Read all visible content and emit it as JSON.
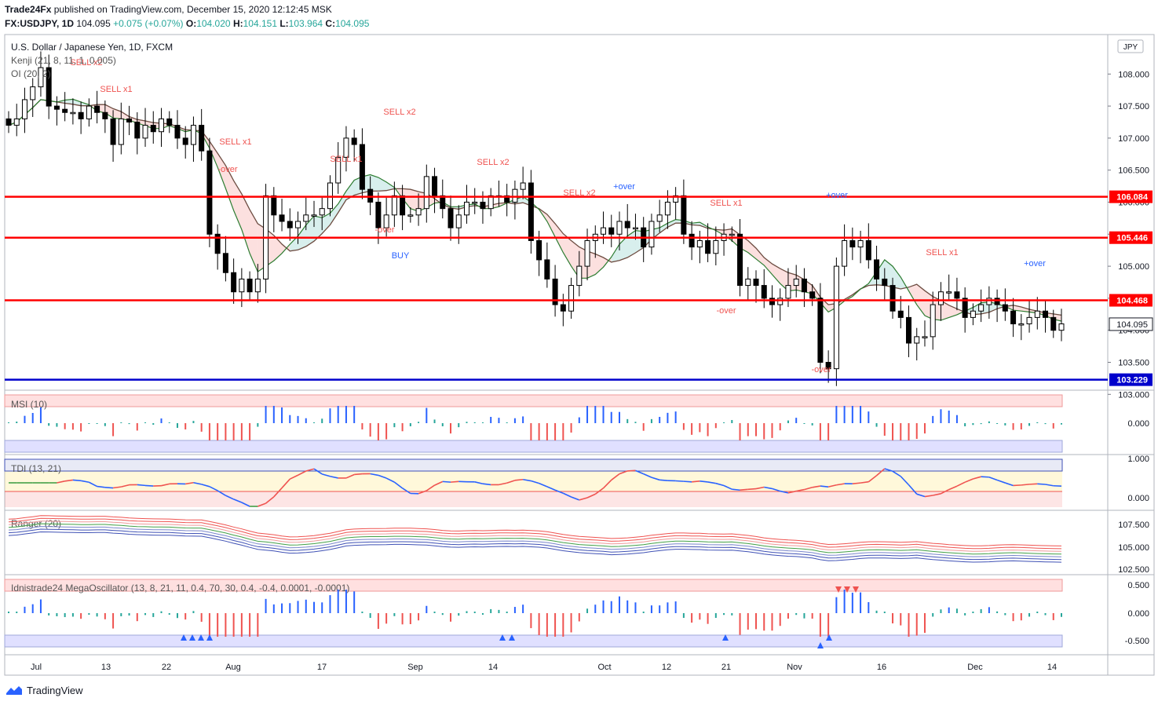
{
  "header": {
    "author": "Trade24Fx",
    "published_text": "published on TradingView.com, December 15, 2020 12:12:45 MSK",
    "symbol": "FX:USDJPY, 1D",
    "last": "104.095",
    "change": "+0.075 (+0.07%)",
    "open_label": "O:",
    "open": "104.020",
    "high_label": "H:",
    "high": "104.151",
    "low_label": "L:",
    "low": "103.964",
    "close_label": "C:",
    "close": "104.095"
  },
  "legend": {
    "title": "U.S. Dollar / Japanese Yen, 1D, FXCM",
    "kenji": "Kenji (21, 8, 11, 1, 0.005)",
    "oi": "OI (20, 2)"
  },
  "currency": "JPY",
  "brand": "TradingView",
  "colors": {
    "up": "#26a69a",
    "down": "#ef5350",
    "res": "#ff0000",
    "sup": "#0000cc",
    "blue": "#2962ff"
  },
  "chart_data": [
    {
      "type": "candlestick",
      "title": "U.S. Dollar / Japanese Yen, 1D, FXCM",
      "y_ticks": [
        "108.000",
        "107.500",
        "107.000",
        "106.500",
        "106.000",
        "105.500",
        "105.000",
        "104.500",
        "104.000",
        "103.500",
        "103.000"
      ],
      "ylim": [
        102.9,
        108.5
      ],
      "horizontal_levels": [
        {
          "value": 106.084,
          "label": "106.084",
          "color": "#ff0000"
        },
        {
          "value": 105.446,
          "label": "105.446",
          "color": "#ff0000"
        },
        {
          "value": 104.468,
          "label": "104.468",
          "color": "#ff0000"
        },
        {
          "value": 103.229,
          "label": "103.229",
          "color": "#0000cc"
        }
      ],
      "last_price": {
        "value": 104.095,
        "label": "104.095"
      },
      "x_ticks": [
        "Jul",
        "13",
        "22",
        "Aug",
        "17",
        "Sep",
        "14",
        "Oct",
        "12",
        "21",
        "Nov",
        "16",
        "Dec",
        "14"
      ],
      "closes": [
        107.2,
        107.3,
        107.6,
        107.8,
        108.1,
        107.5,
        107.45,
        107.4,
        107.4,
        107.3,
        107.5,
        107.4,
        107.3,
        106.9,
        107.3,
        107.25,
        107.0,
        107.2,
        107.1,
        107.3,
        107.2,
        107.0,
        106.9,
        107.2,
        106.8,
        105.5,
        105.2,
        104.9,
        104.6,
        104.8,
        104.6,
        104.8,
        106.1,
        105.8,
        105.7,
        105.6,
        105.7,
        105.8,
        105.8,
        105.9,
        106.3,
        106.7,
        107.0,
        106.9,
        106.2,
        106.0,
        105.6,
        105.8,
        106.1,
        105.8,
        105.8,
        105.9,
        106.4,
        106.1,
        105.9,
        105.6,
        105.8,
        106.0,
        106.0,
        105.9,
        106.1,
        106.1,
        106.0,
        106.2,
        106.3,
        105.4,
        105.1,
        104.8,
        104.4,
        104.3,
        104.7,
        105.0,
        105.4,
        105.5,
        105.6,
        105.5,
        105.7,
        105.6,
        105.6,
        105.3,
        105.7,
        105.8,
        106.0,
        106.1,
        105.5,
        105.3,
        105.4,
        105.2,
        105.4,
        105.5,
        105.5,
        104.7,
        104.8,
        104.7,
        104.5,
        104.4,
        104.5,
        104.7,
        104.8,
        104.6,
        104.5,
        103.5,
        103.4,
        105.0,
        105.4,
        105.3,
        105.4,
        105.1,
        104.8,
        104.7,
        104.3,
        104.2,
        103.8,
        103.9,
        103.9,
        104.4,
        104.6,
        104.6,
        104.5,
        104.2,
        104.3,
        104.4,
        104.5,
        104.4,
        104.3,
        104.1,
        104.1,
        104.2,
        104.3,
        104.2,
        104.0,
        104.1
      ],
      "signals": [
        "SELL x2",
        "SELL x1",
        "SELL x1",
        "SELL x2",
        "SELL x1",
        "SELL x2",
        "SELL x2",
        "SELL x1",
        "SELL x1",
        "+over",
        "-over",
        "BUY",
        "-over",
        "+over",
        "-over",
        "-over",
        "+over"
      ]
    },
    {
      "type": "bar",
      "name": "MSI (10)",
      "y_ticks": [
        "0.000"
      ]
    },
    {
      "type": "line",
      "name": "TDI (13, 21)",
      "y_ticks": [
        "1.000",
        "0.000"
      ]
    },
    {
      "type": "line",
      "name": "Ranger (20)",
      "y_ticks": [
        "107.500",
        "105.000",
        "102.500"
      ]
    },
    {
      "type": "bar",
      "name": "Idnistrade24 MegaOscillator (13, 8, 21, 11, 0.4, 70, 30, 0.4, -0.4, 0.0001, -0.0001)",
      "y_ticks": [
        "0.500",
        "0.000",
        "-0.500"
      ]
    }
  ]
}
